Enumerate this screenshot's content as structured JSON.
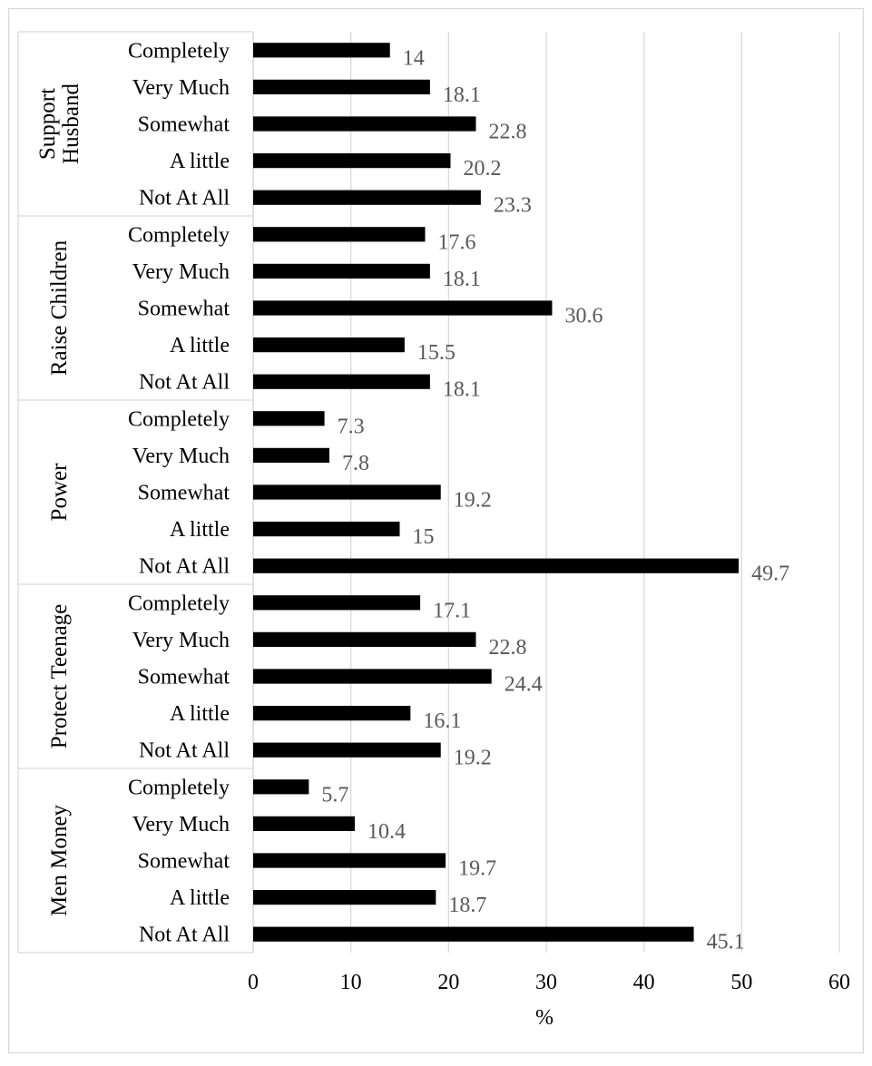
{
  "chart_data": {
    "type": "bar",
    "orientation": "horizontal",
    "xlabel": "%",
    "xlim": [
      0,
      60
    ],
    "xticks": [
      0,
      10,
      20,
      30,
      40,
      50,
      60
    ],
    "grid": true,
    "bar_color": "#000000",
    "label_color": "#595959",
    "groups": [
      {
        "name": "Support Husband",
        "name_lines": [
          "Support",
          "Husband"
        ],
        "categories": [
          "Completely",
          "Very Much",
          "Somewhat",
          "A little",
          "Not At All"
        ],
        "values": [
          14,
          18.1,
          22.8,
          20.2,
          23.3
        ]
      },
      {
        "name": "Raise Children",
        "name_lines": [
          "Raise Children"
        ],
        "categories": [
          "Completely",
          "Very Much",
          "Somewhat",
          "A little",
          "Not At All"
        ],
        "values": [
          17.6,
          18.1,
          30.6,
          15.5,
          18.1
        ]
      },
      {
        "name": "Power",
        "name_lines": [
          "Power"
        ],
        "categories": [
          "Completely",
          "Very Much",
          "Somewhat",
          "A little",
          "Not At All"
        ],
        "values": [
          7.3,
          7.8,
          19.2,
          15,
          49.7
        ]
      },
      {
        "name": "Protect Teenage",
        "name_lines": [
          "Protect Teenage"
        ],
        "categories": [
          "Completely",
          "Very Much",
          "Somewhat",
          "A little",
          "Not At All"
        ],
        "values": [
          17.1,
          22.8,
          24.4,
          16.1,
          19.2
        ]
      },
      {
        "name": "Men Money",
        "name_lines": [
          "Men Money"
        ],
        "categories": [
          "Completely",
          "Very Much",
          "Somewhat",
          "A little",
          "Not At All"
        ],
        "values": [
          5.7,
          10.4,
          19.7,
          18.7,
          45.1
        ]
      }
    ]
  }
}
